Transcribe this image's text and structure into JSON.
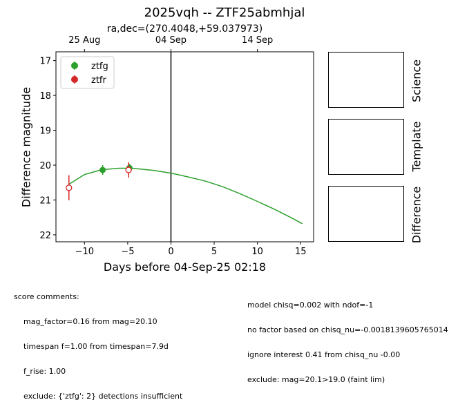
{
  "chart_data": {
    "type": "scatter",
    "title": "2025vqh -- ZTF25abmhjal",
    "subtitle": "ra,dec=(270.4048,+59.037973)",
    "xlabel": "Days before 04-Sep-25 02:18",
    "ylabel": "Difference magnitude",
    "xlim": [
      -13.3,
      16.5
    ],
    "ylim": [
      22.2,
      16.75
    ],
    "y_inverted": true,
    "x_ticks": [
      -10,
      -5,
      0,
      5,
      10,
      15
    ],
    "x_tick_labels": [
      "−10",
      "−5",
      "0",
      "5",
      "10",
      "15"
    ],
    "y_ticks": [
      17,
      18,
      19,
      20,
      21,
      22
    ],
    "y_tick_labels": [
      "17",
      "18",
      "19",
      "20",
      "21",
      "22"
    ],
    "top_axis_ticks": [
      {
        "x": -10,
        "label": "25 Aug"
      },
      {
        "x": 0,
        "label": "04 Sep"
      },
      {
        "x": 10,
        "label": "14 Sep"
      }
    ],
    "vertical_line_x": 0,
    "legend_position": "upper-left",
    "series": [
      {
        "name": "ztfg",
        "color": "#2ca02c",
        "marker": "filled-circle",
        "points": [
          {
            "x": -7.9,
            "y": 20.14,
            "err": 0.14
          },
          {
            "x": -4.8,
            "y": 20.08,
            "err": 0.12
          }
        ]
      },
      {
        "name": "ztfr",
        "color": "#d62728",
        "marker": "open-circle",
        "points": [
          {
            "x": -11.8,
            "y": 20.65,
            "err": 0.36
          },
          {
            "x": -4.9,
            "y": 20.14,
            "err": 0.22
          }
        ]
      }
    ],
    "model_curve": {
      "color": "#2ca02c",
      "x": [
        -11.8,
        -10,
        -8,
        -6,
        -4.5,
        -2,
        0,
        2,
        4,
        6,
        8,
        10,
        12,
        14,
        15.2
      ],
      "y": [
        20.55,
        20.27,
        20.13,
        20.09,
        20.09,
        20.15,
        20.23,
        20.34,
        20.46,
        20.62,
        20.82,
        21.04,
        21.27,
        21.52,
        21.68
      ]
    }
  },
  "side_panels": [
    {
      "label": "Science"
    },
    {
      "label": "Template"
    },
    {
      "label": "Difference"
    }
  ],
  "comments": {
    "left_header": "score comments:",
    "left_lines": [
      "mag_factor=0.16 from mag=20.10",
      "timespan f=1.00 from timespan=7.9d",
      "f_rise: 1.00",
      "exclude: {'ztfg': 2} detections insufficient"
    ],
    "right_lines": [
      "model chisq=0.002 with ndof=-1",
      "no factor based on chisq_nu=-0.0018139605765014",
      "ignore interest 0.41 from chisq_nu -0.00",
      "exclude: mag=20.1>19.0 (faint lim)"
    ]
  }
}
